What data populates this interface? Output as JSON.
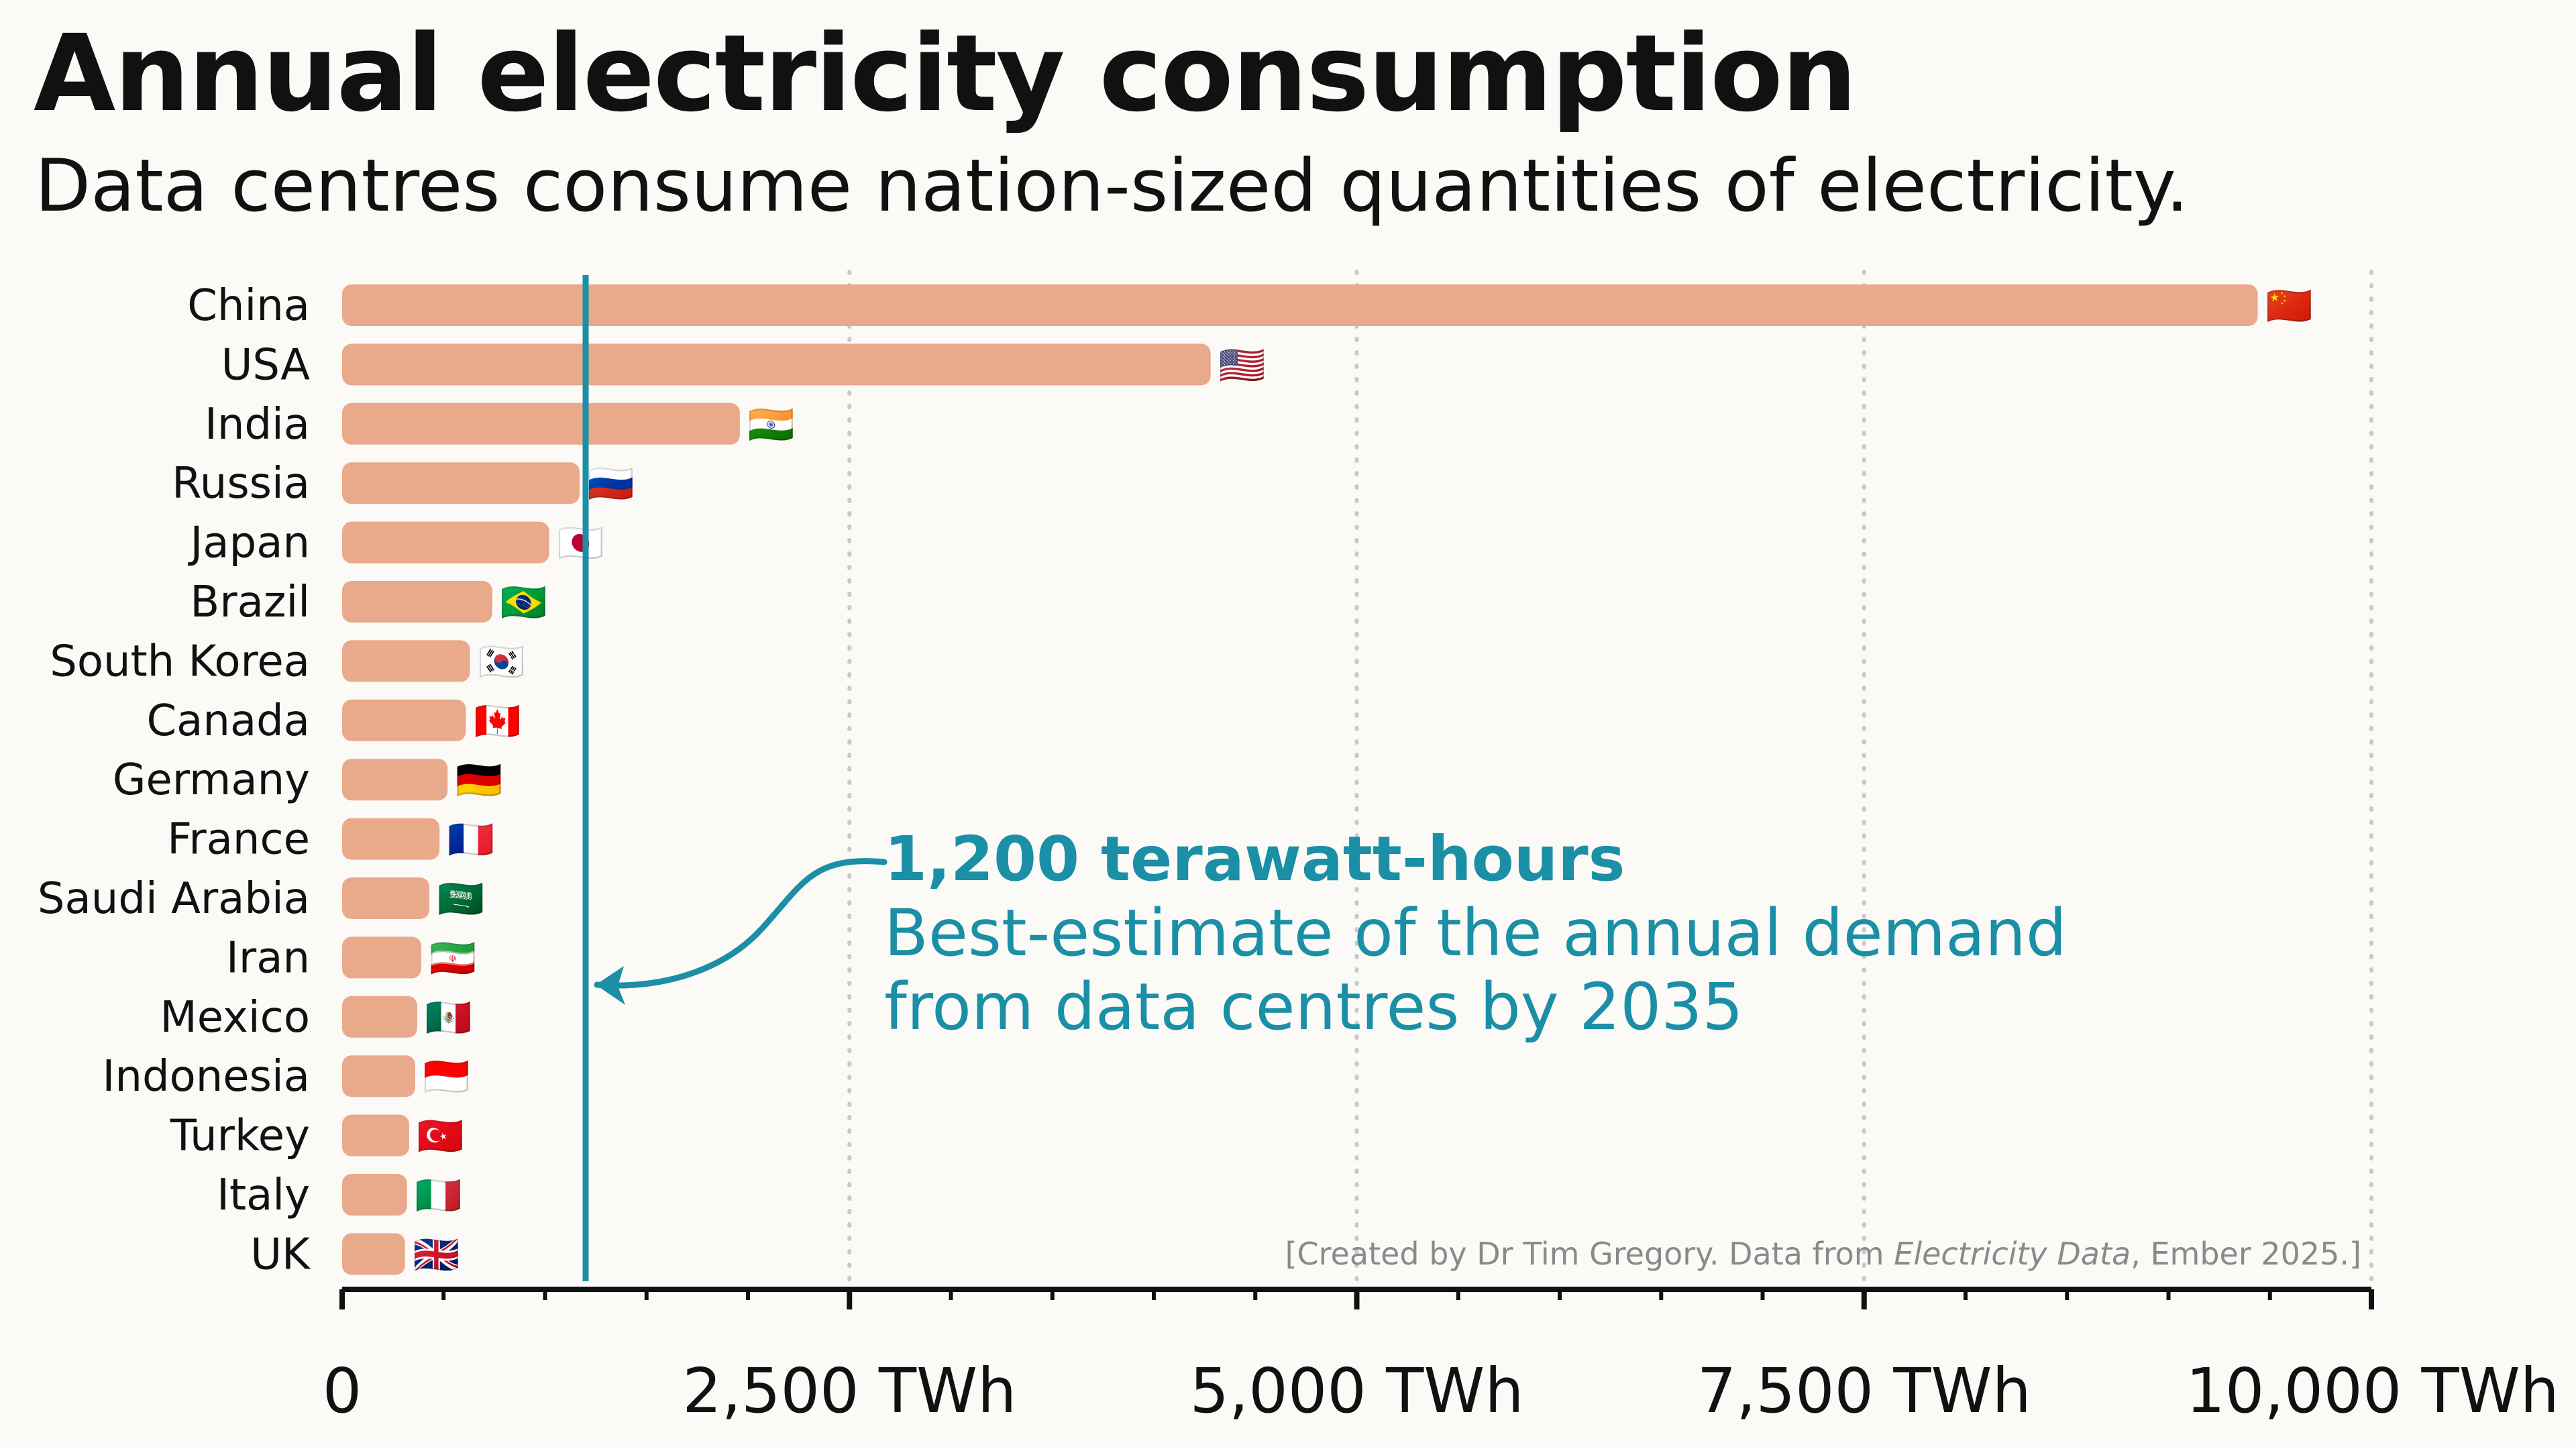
{
  "title": "Annual electricity consumption",
  "subtitle": "Data centres consume nation-sized quantities of electricity.",
  "chart_data": {
    "type": "bar",
    "orientation": "horizontal",
    "categories": [
      "China",
      "USA",
      "India",
      "Russia",
      "Japan",
      "Brazil",
      "South Korea",
      "Canada",
      "Germany",
      "France",
      "Saudi Arabia",
      "Iran",
      "Mexico",
      "Indonesia",
      "Turkey",
      "Italy",
      "UK"
    ],
    "flags": [
      "🇨🇳",
      "🇺🇸",
      "🇮🇳",
      "🇷🇺",
      "🇯🇵",
      "🇧🇷",
      "🇰🇷",
      "🇨🇦",
      "🇩🇪",
      "🇫🇷",
      "🇸🇦",
      "🇮🇷",
      "🇲🇽",
      "🇮🇩",
      "🇹🇷",
      "🇮🇹",
      "🇬🇧"
    ],
    "values": [
      9440,
      4280,
      1960,
      1170,
      1020,
      740,
      630,
      610,
      520,
      480,
      430,
      390,
      370,
      360,
      330,
      320,
      310
    ],
    "xlim": [
      0,
      10000
    ],
    "x_ticks": [
      0,
      2500,
      5000,
      7500,
      10000
    ],
    "x_tick_labels": [
      "0",
      "2,500 TWh",
      "5,000 TWh",
      "7,500 TWh",
      "10,000 TWh"
    ],
    "grid": "vertical dotted",
    "bar_color": "#e9a98b",
    "reference_line": {
      "value": 1200,
      "color": "#1a8fa6",
      "label_title": "1,200 terawatt-hours",
      "label_lines": [
        "Best-estimate of the annual demand",
        "from data centres by 2035"
      ]
    }
  },
  "credit": {
    "prefix": "[Created by Dr Tim Gregory. Data from ",
    "source": "Electricity Data",
    "suffix": ", Ember 2025.]"
  }
}
